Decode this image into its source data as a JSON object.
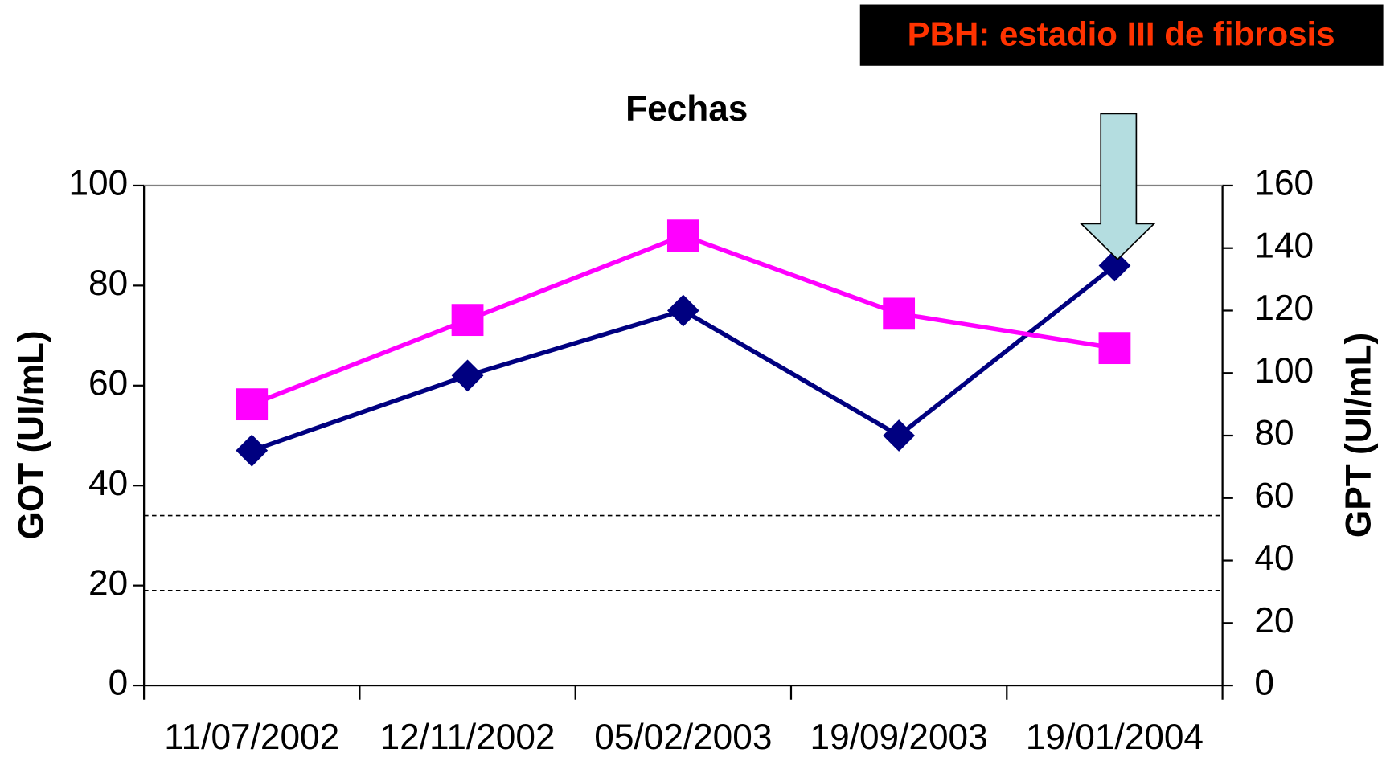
{
  "chart_data": {
    "type": "line",
    "title": "Fechas",
    "annotation": "PBH: estadio III de fibrosis",
    "categories": [
      "11/07/2002",
      "12/11/2002",
      "05/02/2003",
      "19/09/2003",
      "19/01/2004"
    ],
    "y_label": "GOT (UI/mL)",
    "y2_label": "GPT (UI/mL)",
    "series": [
      {
        "color": "#000080",
        "marker": "diamond",
        "values": [
          47,
          62,
          75,
          50,
          84
        ]
      },
      {
        "color": "#ff00ff",
        "marker": "square",
        "axis": "y2",
        "values": [
          90,
          117,
          144,
          119,
          108
        ]
      }
    ],
    "reference_lines": [
      34,
      19
    ],
    "ylim": [
      0,
      100
    ],
    "yticks": [
      0,
      20,
      40,
      60,
      80,
      100
    ],
    "y2lim": [
      0,
      160
    ],
    "y2ticks": [
      0,
      20,
      40,
      60,
      80,
      100,
      120,
      140,
      160
    ]
  }
}
